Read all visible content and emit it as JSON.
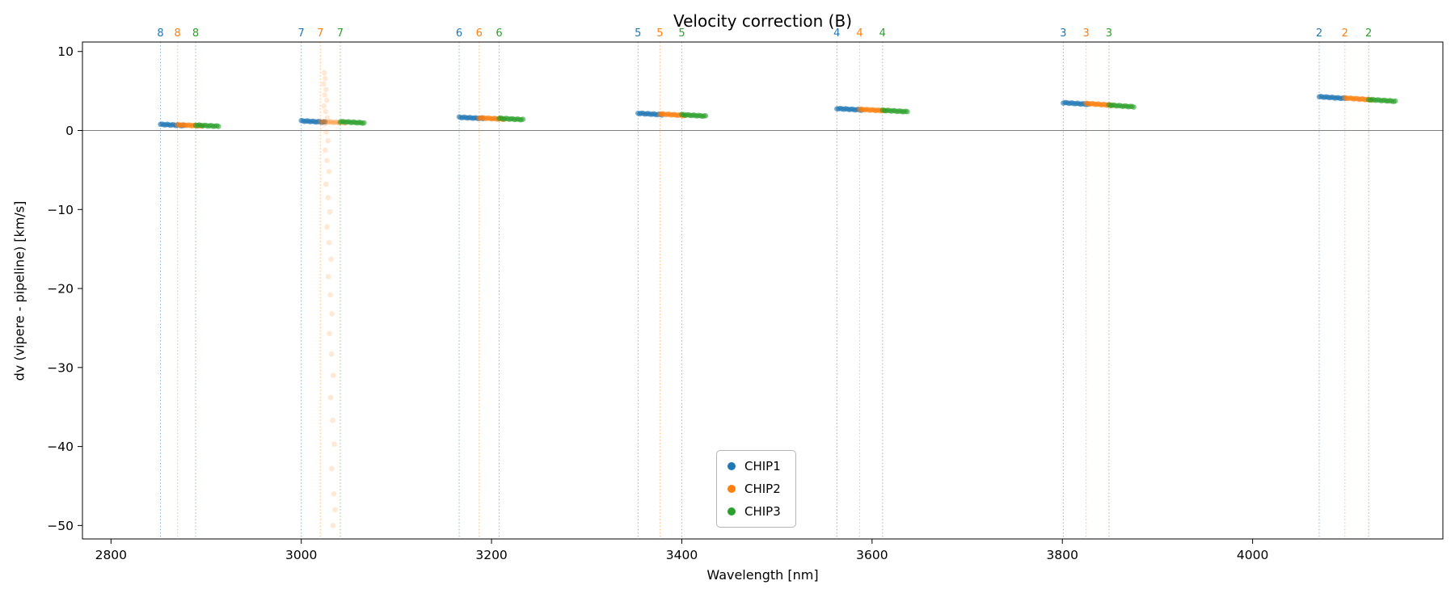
{
  "chart_data": {
    "type": "scatter",
    "title": "Velocity correction (B)",
    "xlabel": "Wavelength [nm]",
    "ylabel": "dv (vipere - pipeline) [km/s]",
    "xlim": [
      2770,
      4200
    ],
    "ylim": [
      -51.7,
      11.2
    ],
    "xticks": [
      2800,
      3000,
      3200,
      3400,
      3600,
      3800,
      4000
    ],
    "xtick_labels": [
      "2800",
      "3000",
      "3200",
      "3400",
      "3600",
      "3800",
      "4000"
    ],
    "yticks": [
      10,
      0,
      -10,
      -20,
      -30,
      -40,
      -50
    ],
    "ytick_labels": [
      "10",
      "0",
      "−10",
      "−20",
      "−30",
      "−40",
      "−50"
    ],
    "zero_line": 0,
    "grid": false,
    "legend_position": "lower center-left inside plot",
    "series": [
      {
        "name": "CHIP1",
        "color": "#1f77b4"
      },
      {
        "name": "CHIP2",
        "color": "#ff7f0e"
      },
      {
        "name": "CHIP3",
        "color": "#2ca02c"
      }
    ],
    "orders": [
      {
        "order": "8",
        "segments": [
          {
            "chip": "CHIP1",
            "line_x": 2852,
            "x0": 2852,
            "x1": 2877,
            "y0": 0.78,
            "y1": 0.62
          },
          {
            "chip": "CHIP2",
            "line_x": 2870,
            "x0": 2870,
            "x1": 2896,
            "y0": 0.72,
            "y1": 0.58
          },
          {
            "chip": "CHIP3",
            "line_x": 2889,
            "x0": 2889,
            "x1": 2913,
            "y0": 0.68,
            "y1": 0.54
          }
        ]
      },
      {
        "order": "7",
        "segments": [
          {
            "chip": "CHIP1",
            "line_x": 3000,
            "x0": 3000,
            "x1": 3025,
            "y0": 1.22,
            "y1": 1.05
          },
          {
            "chip": "CHIP2",
            "line_x": 3020,
            "x0": 3020,
            "x1": 3046,
            "y0": 1.12,
            "y1": 0.98,
            "alpha": 0.3
          },
          {
            "chip": "CHIP3",
            "line_x": 3041,
            "x0": 3041,
            "x1": 3066,
            "y0": 1.12,
            "y1": 0.96
          }
        ]
      },
      {
        "order": "6",
        "segments": [
          {
            "chip": "CHIP1",
            "line_x": 3166,
            "x0": 3166,
            "x1": 3191,
            "y0": 1.68,
            "y1": 1.52
          },
          {
            "chip": "CHIP2",
            "line_x": 3187,
            "x0": 3187,
            "x1": 3213,
            "y0": 1.6,
            "y1": 1.44
          },
          {
            "chip": "CHIP3",
            "line_x": 3208,
            "x0": 3208,
            "x1": 3233,
            "y0": 1.54,
            "y1": 1.38
          }
        ]
      },
      {
        "order": "5",
        "segments": [
          {
            "chip": "CHIP1",
            "line_x": 3354,
            "x0": 3354,
            "x1": 3379,
            "y0": 2.18,
            "y1": 2.0
          },
          {
            "chip": "CHIP2",
            "line_x": 3377,
            "x0": 3377,
            "x1": 3403,
            "y0": 2.1,
            "y1": 1.9
          },
          {
            "chip": "CHIP3",
            "line_x": 3400,
            "x0": 3400,
            "x1": 3425,
            "y0": 2.0,
            "y1": 1.82
          }
        ]
      },
      {
        "order": "4",
        "segments": [
          {
            "chip": "CHIP1",
            "line_x": 3563,
            "x0": 3563,
            "x1": 3589,
            "y0": 2.78,
            "y1": 2.6
          },
          {
            "chip": "CHIP2",
            "line_x": 3587,
            "x0": 3587,
            "x1": 3614,
            "y0": 2.68,
            "y1": 2.5
          },
          {
            "chip": "CHIP3",
            "line_x": 3611,
            "x0": 3611,
            "x1": 3637,
            "y0": 2.56,
            "y1": 2.38
          }
        ]
      },
      {
        "order": "3",
        "segments": [
          {
            "chip": "CHIP1",
            "line_x": 3801,
            "x0": 3801,
            "x1": 3827,
            "y0": 3.52,
            "y1": 3.32
          },
          {
            "chip": "CHIP2",
            "line_x": 3825,
            "x0": 3825,
            "x1": 3852,
            "y0": 3.42,
            "y1": 3.2
          },
          {
            "chip": "CHIP3",
            "line_x": 3849,
            "x0": 3849,
            "x1": 3875,
            "y0": 3.22,
            "y1": 3.0
          }
        ]
      },
      {
        "order": "2",
        "segments": [
          {
            "chip": "CHIP1",
            "line_x": 4070,
            "x0": 4070,
            "x1": 4097,
            "y0": 4.28,
            "y1": 4.06
          },
          {
            "chip": "CHIP2",
            "line_x": 4097,
            "x0": 4097,
            "x1": 4125,
            "y0": 4.12,
            "y1": 3.88
          },
          {
            "chip": "CHIP3",
            "line_x": 4122,
            "x0": 4122,
            "x1": 4150,
            "y0": 3.92,
            "y1": 3.7
          }
        ]
      }
    ],
    "outliers": {
      "chip": "CHIP2",
      "order": "7",
      "alpha": 0.18,
      "points": [
        [
          3024.2,
          7.3
        ],
        [
          3025.0,
          6.6
        ],
        [
          3023.5,
          5.9
        ],
        [
          3026.1,
          5.2
        ],
        [
          3024.8,
          4.5
        ],
        [
          3026.8,
          3.8
        ],
        [
          3023.9,
          3.1
        ],
        [
          3025.6,
          2.4
        ],
        [
          3027.4,
          1.6
        ],
        [
          3024.5,
          0.8
        ],
        [
          3026.3,
          -0.2
        ],
        [
          3028.0,
          -1.3
        ],
        [
          3025.2,
          -2.5
        ],
        [
          3027.0,
          -3.8
        ],
        [
          3029.1,
          -5.2
        ],
        [
          3026.0,
          -6.8
        ],
        [
          3028.2,
          -8.5
        ],
        [
          3030.0,
          -10.3
        ],
        [
          3027.1,
          -12.2
        ],
        [
          3029.3,
          -14.2
        ],
        [
          3031.2,
          -16.3
        ],
        [
          3028.4,
          -18.5
        ],
        [
          3030.5,
          -20.8
        ],
        [
          3032.3,
          -23.2
        ],
        [
          3029.6,
          -25.7
        ],
        [
          3031.8,
          -28.3
        ],
        [
          3033.5,
          -31.0
        ],
        [
          3030.8,
          -33.8
        ],
        [
          3033.0,
          -36.7
        ],
        [
          3034.8,
          -39.7
        ],
        [
          3032.0,
          -42.8
        ],
        [
          3034.2,
          -46.0
        ],
        [
          3035.5,
          -48.0
        ],
        [
          3033.3,
          -50.0
        ]
      ]
    }
  }
}
